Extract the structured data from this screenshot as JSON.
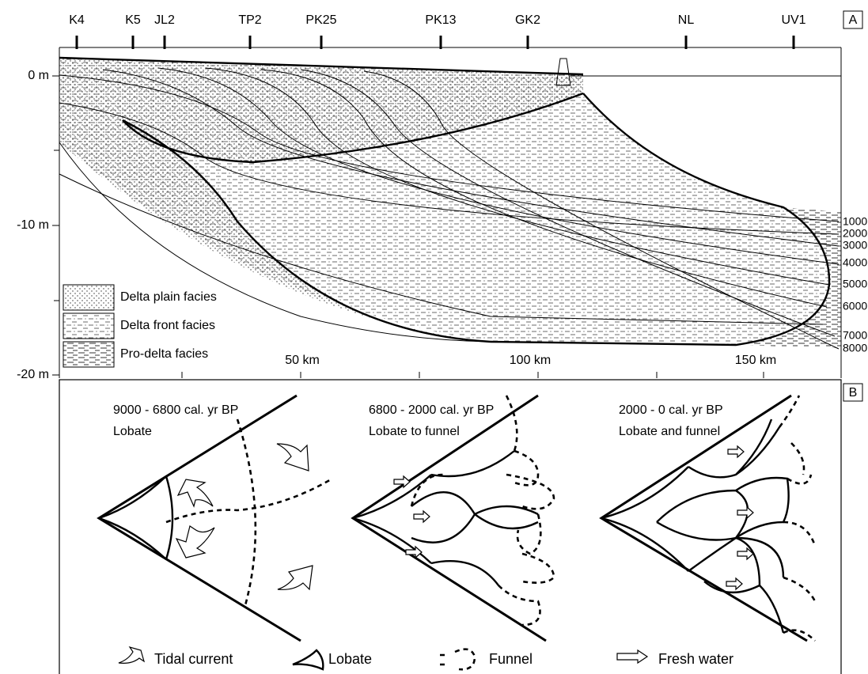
{
  "panel_a": {
    "label": "A",
    "wells": [
      "K4",
      "K5",
      "JL2",
      "TP2",
      "PK25",
      "PK13",
      "GK2",
      "NL",
      "UV1"
    ],
    "depth_labels": [
      "0 m",
      "-10 m",
      "-20 m"
    ],
    "distance_labels": [
      "50 km",
      "100 km",
      "150 km"
    ],
    "isochrons": [
      "1000",
      "2000",
      "3000",
      "4000",
      "5000",
      "6000",
      "7000",
      "8000"
    ],
    "legend": [
      "Delta plain facies",
      "Delta front facies",
      "Pro-delta facies"
    ]
  },
  "panel_b": {
    "label": "B",
    "stages": [
      {
        "period": "9000 - 6800 cal. yr BP",
        "shape": "Lobate"
      },
      {
        "period": "6800 - 2000 cal. yr BP",
        "shape": "Lobate to funnel"
      },
      {
        "period": "2000 - 0 cal. yr BP",
        "shape": "Lobate and funnel"
      }
    ],
    "legend": [
      "Tidal current",
      "Lobate",
      "Funnel",
      "Fresh water"
    ]
  }
}
